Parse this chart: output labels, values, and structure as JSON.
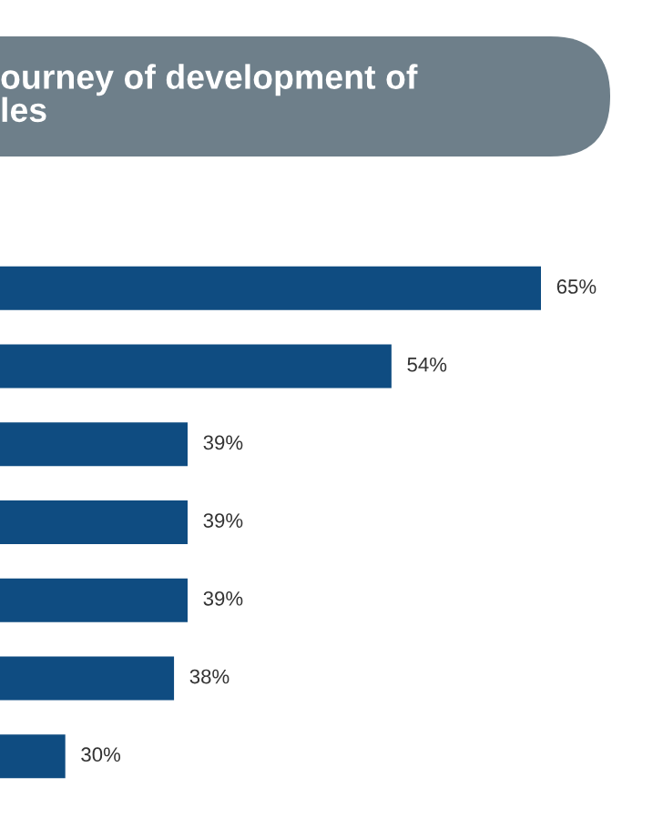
{
  "chart_data": {
    "type": "bar",
    "orientation": "horizontal",
    "title": "ourney of development of\nles",
    "categories": [
      null,
      null,
      null,
      null,
      null,
      null,
      null
    ],
    "values": [
      65,
      54,
      39,
      39,
      39,
      38,
      30
    ],
    "value_labels": [
      "65%",
      "54%",
      "39%",
      "39%",
      "39%",
      "38%",
      "30%"
    ],
    "color": "#0f4c81",
    "tick_labels": false,
    "grid": false,
    "legend": false
  }
}
